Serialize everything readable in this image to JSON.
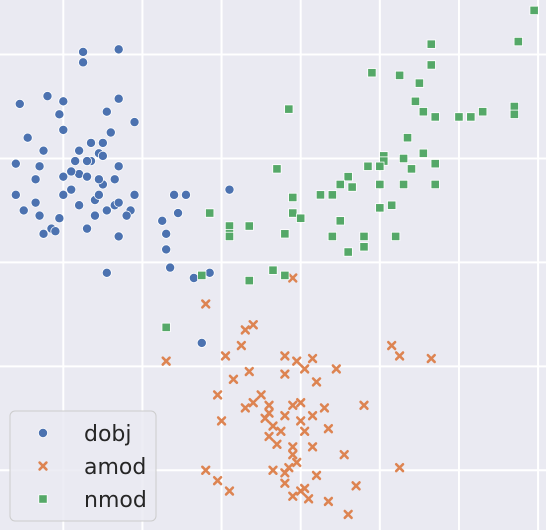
{
  "chart_data": {
    "type": "scatter",
    "title": "",
    "xlabel": "",
    "ylabel": "",
    "xlim": [
      -3.6,
      10.2
    ],
    "ylim": [
      -10.3,
      10.1
    ],
    "grid": true,
    "legend_position": "bottom-left",
    "colors": {
      "background": "#eaeaf2",
      "grid": "#ffffff",
      "dobj": "#4c72b0",
      "amod": "#dd8452",
      "nmod": "#55a868"
    },
    "series": [
      {
        "name": "dobj",
        "marker": "circle",
        "points": [
          [
            -1.5,
            8.1
          ],
          [
            -0.9,
            5.8
          ],
          [
            -1.5,
            7.7
          ],
          [
            -0.6,
            6.3
          ],
          [
            -2.0,
            6.2
          ],
          [
            -3.1,
            6.1
          ],
          [
            -2.4,
            6.4
          ],
          [
            -2.1,
            5.7
          ],
          [
            -0.6,
            8.2
          ],
          [
            -0.2,
            5.4
          ],
          [
            -2.0,
            5.1
          ],
          [
            -2.9,
            4.8
          ],
          [
            -1.0,
            4.6
          ],
          [
            -0.8,
            5.0
          ],
          [
            -1.3,
            4.6
          ],
          [
            -2.5,
            4.3
          ],
          [
            -1.3,
            3.9
          ],
          [
            -3.2,
            3.8
          ],
          [
            -1.7,
            3.9
          ],
          [
            -2.6,
            3.7
          ],
          [
            -1.6,
            3.4
          ],
          [
            -0.6,
            3.7
          ],
          [
            -1.4,
            3.3
          ],
          [
            -2.7,
            3.2
          ],
          [
            -2.0,
            3.3
          ],
          [
            -1.0,
            3.0
          ],
          [
            -1.8,
            2.8
          ],
          [
            -2.0,
            2.6
          ],
          [
            -1.1,
            3.2
          ],
          [
            -0.7,
            3.2
          ],
          [
            -1.8,
            3.5
          ],
          [
            -1.1,
            4.2
          ],
          [
            -1.4,
            3.9
          ],
          [
            -1.0,
            4.1
          ],
          [
            -1.6,
            4.3
          ],
          [
            -3.2,
            2.6
          ],
          [
            -2.7,
            2.3
          ],
          [
            -3.0,
            2.0
          ],
          [
            -2.6,
            1.8
          ],
          [
            -2.1,
            1.7
          ],
          [
            -2.3,
            1.3
          ],
          [
            -2.5,
            1.1
          ],
          [
            -2.2,
            1.2
          ],
          [
            -1.6,
            2.2
          ],
          [
            -1.2,
            1.8
          ],
          [
            -0.7,
            2.2
          ],
          [
            -0.3,
            2.0
          ],
          [
            -0.4,
            1.8
          ],
          [
            -0.9,
            2.0
          ],
          [
            -1.2,
            2.4
          ],
          [
            -1.1,
            2.6
          ],
          [
            -0.6,
            2.3
          ],
          [
            -0.2,
            2.6
          ],
          [
            0.5,
            1.6
          ],
          [
            0.8,
            2.6
          ],
          [
            0.9,
            1.9
          ],
          [
            1.1,
            2.6
          ],
          [
            2.2,
            2.8
          ],
          [
            -1.4,
            1.3
          ],
          [
            -0.6,
            1.0
          ],
          [
            0.6,
            1.1
          ],
          [
            0.6,
            0.5
          ],
          [
            0.7,
            -0.2
          ],
          [
            1.3,
            -0.6
          ],
          [
            1.7,
            -0.4
          ],
          [
            -0.9,
            -0.4
          ],
          [
            1.5,
            -3.1
          ]
        ]
      },
      {
        "name": "amod",
        "marker": "x",
        "points": [
          [
            3.8,
            -0.6
          ],
          [
            1.6,
            -1.6
          ],
          [
            2.6,
            -2.6
          ],
          [
            2.8,
            -2.4
          ],
          [
            2.5,
            -3.2
          ],
          [
            2.1,
            -3.6
          ],
          [
            6.3,
            -3.2
          ],
          [
            6.5,
            -3.6
          ],
          [
            7.3,
            -3.7
          ],
          [
            0.6,
            -3.8
          ],
          [
            3.6,
            -3.6
          ],
          [
            3.9,
            -3.8
          ],
          [
            4.3,
            -3.7
          ],
          [
            4.1,
            -4.1
          ],
          [
            4.9,
            -4.1
          ],
          [
            2.7,
            -4.2
          ],
          [
            3.6,
            -4.3
          ],
          [
            4.4,
            -4.6
          ],
          [
            2.3,
            -4.5
          ],
          [
            1.9,
            -5.1
          ],
          [
            3.0,
            -5.1
          ],
          [
            2.8,
            -5.4
          ],
          [
            2.6,
            -5.6
          ],
          [
            3.2,
            -5.5
          ],
          [
            3.8,
            -5.5
          ],
          [
            4.0,
            -5.4
          ],
          [
            4.6,
            -5.6
          ],
          [
            5.6,
            -5.5
          ],
          [
            3.2,
            -5.8
          ],
          [
            3.1,
            -6.0
          ],
          [
            3.6,
            -5.9
          ],
          [
            4.0,
            -6.1
          ],
          [
            4.3,
            -5.9
          ],
          [
            2.0,
            -6.1
          ],
          [
            3.3,
            -6.3
          ],
          [
            3.5,
            -6.5
          ],
          [
            3.2,
            -6.7
          ],
          [
            4.1,
            -6.5
          ],
          [
            4.7,
            -6.4
          ],
          [
            3.4,
            -7.0
          ],
          [
            3.8,
            -7.1
          ],
          [
            4.3,
            -7.1
          ],
          [
            3.8,
            -7.4
          ],
          [
            5.1,
            -7.4
          ],
          [
            3.9,
            -7.7
          ],
          [
            3.7,
            -7.9
          ],
          [
            6.5,
            -7.9
          ],
          [
            1.6,
            -8.0
          ],
          [
            3.3,
            -8.0
          ],
          [
            3.6,
            -8.1
          ],
          [
            4.4,
            -8.2
          ],
          [
            1.9,
            -8.4
          ],
          [
            3.6,
            -8.5
          ],
          [
            2.2,
            -8.8
          ],
          [
            4.0,
            -8.8
          ],
          [
            4.1,
            -8.7
          ],
          [
            5.4,
            -8.6
          ],
          [
            3.8,
            -9.0
          ],
          [
            4.2,
            -9.1
          ],
          [
            4.7,
            -9.2
          ],
          [
            5.2,
            -9.7
          ]
        ]
      },
      {
        "name": "nmod",
        "marker": "square",
        "points": [
          [
            9.9,
            9.7
          ],
          [
            7.3,
            8.4
          ],
          [
            9.5,
            8.5
          ],
          [
            7.3,
            7.6
          ],
          [
            5.8,
            7.3
          ],
          [
            6.5,
            7.2
          ],
          [
            7.0,
            6.9
          ],
          [
            3.7,
            5.9
          ],
          [
            6.9,
            6.2
          ],
          [
            7.1,
            5.8
          ],
          [
            7.4,
            5.6
          ],
          [
            8.0,
            5.6
          ],
          [
            8.6,
            5.8
          ],
          [
            9.4,
            6.0
          ],
          [
            9.4,
            5.7
          ],
          [
            8.3,
            5.6
          ],
          [
            6.7,
            4.8
          ],
          [
            6.1,
            4.1
          ],
          [
            6.1,
            3.9
          ],
          [
            6.6,
            4.0
          ],
          [
            7.1,
            4.2
          ],
          [
            6.0,
            3.7
          ],
          [
            6.8,
            3.6
          ],
          [
            7.4,
            3.8
          ],
          [
            3.4,
            3.6
          ],
          [
            5.7,
            3.7
          ],
          [
            5.2,
            3.3
          ],
          [
            5.0,
            3.0
          ],
          [
            5.3,
            2.9
          ],
          [
            4.5,
            2.6
          ],
          [
            6.0,
            3.0
          ],
          [
            6.6,
            3.0
          ],
          [
            7.4,
            3.0
          ],
          [
            3.8,
            2.5
          ],
          [
            4.8,
            2.6
          ],
          [
            6.0,
            2.1
          ],
          [
            6.3,
            2.2
          ],
          [
            3.8,
            1.9
          ],
          [
            4.0,
            1.7
          ],
          [
            5.0,
            1.6
          ],
          [
            1.7,
            1.9
          ],
          [
            2.2,
            1.4
          ],
          [
            2.7,
            1.4
          ],
          [
            2.2,
            1.1
          ],
          [
            2.2,
            1.0
          ],
          [
            3.6,
            1.1
          ],
          [
            4.8,
            1.0
          ],
          [
            5.6,
            1.0
          ],
          [
            6.4,
            1.0
          ],
          [
            5.2,
            0.4
          ],
          [
            5.6,
            0.6
          ],
          [
            3.3,
            -0.3
          ],
          [
            3.6,
            -0.5
          ],
          [
            1.5,
            -0.5
          ],
          [
            2.7,
            -0.7
          ],
          [
            0.6,
            -2.5
          ]
        ]
      }
    ],
    "legend": [
      "dobj",
      "amod",
      "nmod"
    ]
  }
}
